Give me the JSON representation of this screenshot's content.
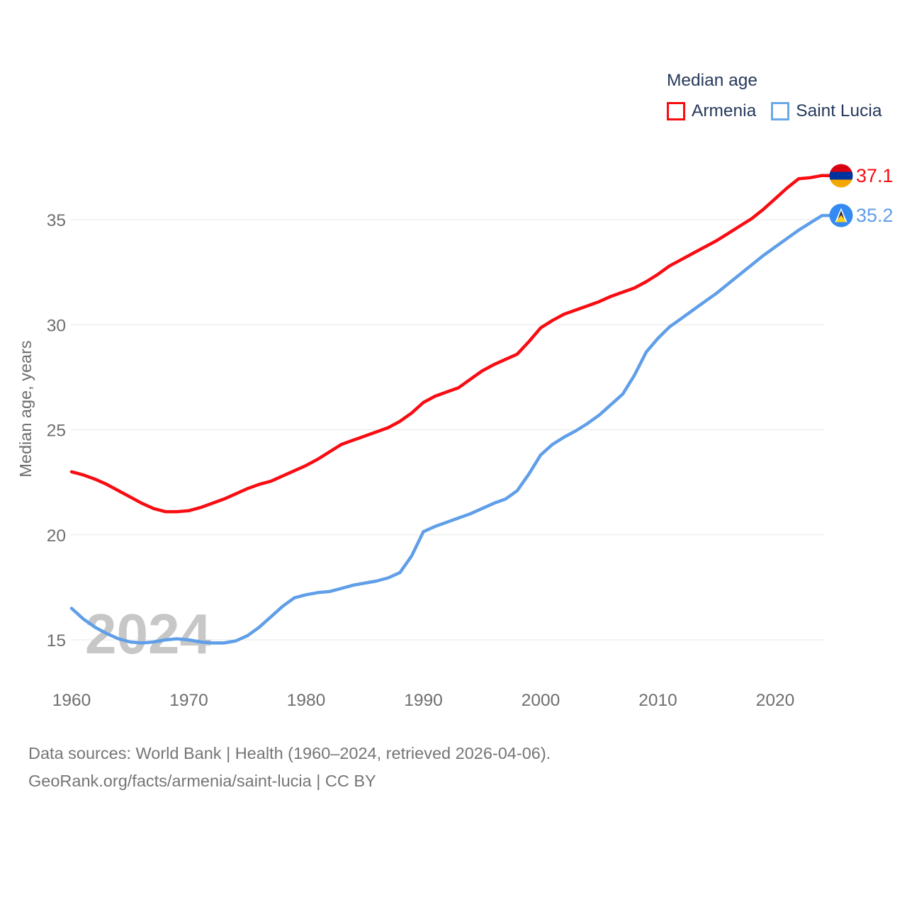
{
  "legend": {
    "title": "Median age",
    "items": [
      {
        "label": "Armenia",
        "color": "#f80c12"
      },
      {
        "label": "Saint Lucia",
        "color": "#6aa9e9"
      }
    ]
  },
  "watermark": "2024",
  "axis": {
    "y_title": "Median age, years",
    "y_ticks": [
      15,
      20,
      25,
      30,
      35
    ],
    "x_ticks": [
      1960,
      1970,
      1980,
      1990,
      2000,
      2010,
      2020
    ]
  },
  "end_labels": [
    {
      "series": "Armenia",
      "value": "37.1",
      "color": "#f80c12",
      "flag": "armenia-flag"
    },
    {
      "series": "Saint Lucia",
      "value": "35.2",
      "color": "#5f9ee8",
      "flag": "saint-lucia-flag"
    }
  ],
  "footer": {
    "line1": "Data sources: World Bank | Health (1960–2024, retrieved 2026-04-06).",
    "line2": "GeoRank.org/facts/armenia/saint-lucia | CC BY"
  },
  "chart_data": {
    "type": "line",
    "title": "Median age",
    "ylabel": "Median age, years",
    "xlabel": "",
    "x_range": [
      1960,
      2024
    ],
    "ylim": [
      13.5,
      38.5
    ],
    "grid": "horizontal",
    "legend_position": "top-right",
    "x": [
      1960,
      1961,
      1962,
      1963,
      1964,
      1965,
      1966,
      1967,
      1968,
      1969,
      1970,
      1971,
      1972,
      1973,
      1974,
      1975,
      1976,
      1977,
      1978,
      1979,
      1980,
      1981,
      1982,
      1983,
      1984,
      1985,
      1986,
      1987,
      1988,
      1989,
      1990,
      1991,
      1992,
      1993,
      1994,
      1995,
      1996,
      1997,
      1998,
      1999,
      2000,
      2001,
      2002,
      2003,
      2004,
      2005,
      2006,
      2007,
      2008,
      2009,
      2010,
      2011,
      2012,
      2013,
      2014,
      2015,
      2016,
      2017,
      2018,
      2019,
      2020,
      2021,
      2022,
      2023,
      2024
    ],
    "series": [
      {
        "name": "Armenia",
        "color": "#f80c12",
        "end_value": 37.1,
        "values": [
          23.0,
          22.85,
          22.65,
          22.4,
          22.1,
          21.8,
          21.5,
          21.25,
          21.1,
          21.1,
          21.15,
          21.3,
          21.5,
          21.7,
          21.95,
          22.2,
          22.4,
          22.55,
          22.8,
          23.05,
          23.3,
          23.6,
          23.95,
          24.3,
          24.5,
          24.7,
          24.9,
          25.1,
          25.4,
          25.8,
          26.3,
          26.6,
          26.8,
          27.0,
          27.4,
          27.8,
          28.1,
          28.35,
          28.6,
          29.2,
          29.85,
          30.2,
          30.5,
          30.7,
          30.9,
          31.1,
          31.35,
          31.55,
          31.75,
          32.05,
          32.4,
          32.8,
          33.1,
          33.4,
          33.7,
          34.0,
          34.35,
          34.7,
          35.05,
          35.5,
          36.0,
          36.5,
          36.95,
          37.0,
          37.1
        ]
      },
      {
        "name": "Saint Lucia",
        "color": "#5f9ee8",
        "end_value": 35.2,
        "values": [
          16.5,
          16.0,
          15.6,
          15.3,
          15.05,
          14.9,
          14.85,
          14.9,
          15.0,
          15.05,
          15.0,
          14.9,
          14.85,
          14.85,
          14.95,
          15.2,
          15.6,
          16.1,
          16.6,
          17.0,
          17.15,
          17.25,
          17.3,
          17.45,
          17.6,
          17.7,
          17.8,
          17.95,
          18.2,
          19.0,
          20.15,
          20.4,
          20.6,
          20.8,
          21.0,
          21.25,
          21.5,
          21.7,
          22.1,
          22.9,
          23.8,
          24.3,
          24.65,
          24.95,
          25.3,
          25.7,
          26.2,
          26.7,
          27.6,
          28.7,
          29.35,
          29.9,
          30.3,
          30.7,
          31.1,
          31.5,
          31.95,
          32.4,
          32.85,
          33.3,
          33.7,
          34.1,
          34.5,
          34.85,
          35.2
        ]
      }
    ]
  }
}
